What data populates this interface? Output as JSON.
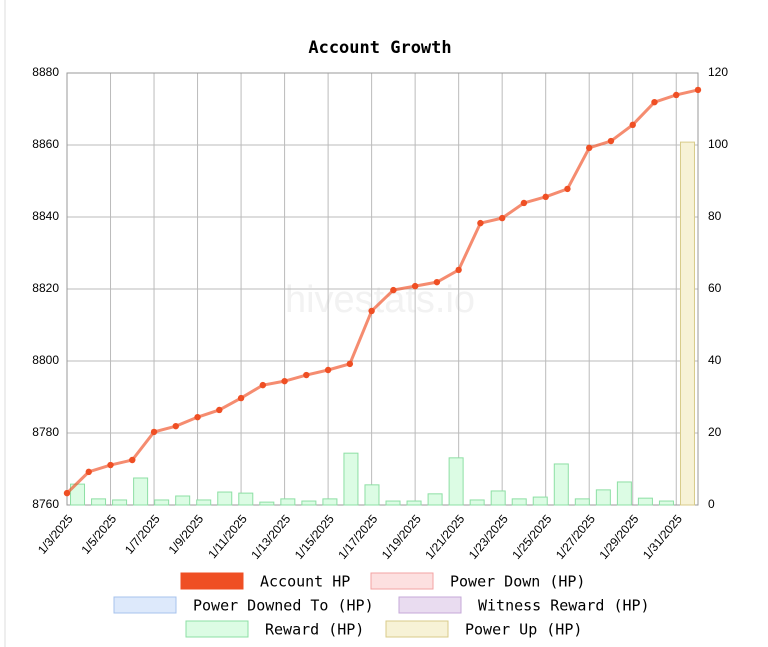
{
  "chart_data": {
    "type": "line",
    "title": "Account Growth",
    "watermark": "hivestats.io",
    "categories": [
      "1/3/2025",
      null,
      "1/5/2025",
      null,
      "1/7/2025",
      null,
      "1/9/2025",
      null,
      "1/11/2025",
      null,
      "1/13/2025",
      null,
      "1/15/2025",
      null,
      "1/17/2025",
      null,
      "1/19/2025",
      null,
      "1/21/2025",
      null,
      "1/23/2025",
      null,
      "1/25/2025",
      null,
      "1/27/2025",
      null,
      "1/29/2025",
      null,
      "1/31/2025",
      null
    ],
    "ylim": [
      8760,
      8880
    ],
    "yticks": [
      8760,
      8780,
      8800,
      8820,
      8840,
      8860,
      8880
    ],
    "y2lim": [
      0,
      120
    ],
    "y2ticks": [
      0,
      20,
      40,
      60,
      80,
      100,
      120
    ],
    "grid": true,
    "series": [
      {
        "name": "Account HP",
        "type": "line",
        "color": "#ef4f24",
        "values": [
          8763.3,
          8769.2,
          8771.1,
          8772.5,
          8780.3,
          8781.9,
          8784.4,
          8786.4,
          8789.7,
          8793.3,
          8794.4,
          8796.1,
          8797.5,
          8799.2,
          8813.9,
          8819.7,
          8820.8,
          8821.9,
          8825.3,
          8838.3,
          8839.7,
          8843.9,
          8845.6,
          8847.8,
          8859.2,
          8861.1,
          8865.6,
          8871.9,
          8873.9,
          8875.3
        ]
      },
      {
        "name": "Power Down (HP)",
        "type": "bar",
        "axis": "y2",
        "color": "#fde0e0",
        "values": [
          null,
          null,
          null,
          null,
          null,
          null,
          null,
          null,
          null,
          null,
          null,
          null,
          null,
          null,
          null,
          null,
          null,
          null,
          null,
          null,
          null,
          null,
          null,
          null,
          null,
          null,
          null,
          null,
          null,
          null
        ]
      },
      {
        "name": "Power Downed To (HP)",
        "type": "bar",
        "axis": "y2",
        "color": "#dde9fb",
        "values": [
          null,
          null,
          null,
          null,
          null,
          null,
          null,
          null,
          null,
          null,
          null,
          null,
          null,
          null,
          null,
          null,
          null,
          null,
          null,
          null,
          null,
          null,
          null,
          null,
          null,
          null,
          null,
          null,
          null,
          null
        ]
      },
      {
        "name": "Witness Reward (HP)",
        "type": "bar",
        "axis": "y2",
        "color": "#e9dcf0",
        "values": [
          null,
          null,
          null,
          null,
          null,
          null,
          null,
          null,
          null,
          null,
          null,
          null,
          null,
          null,
          null,
          null,
          null,
          null,
          null,
          null,
          null,
          null,
          null,
          null,
          null,
          null,
          null,
          null,
          null,
          null
        ]
      },
      {
        "name": "Reward (HP)",
        "type": "bar",
        "axis": "y2",
        "color": "#dcfce4",
        "values": [
          5.8,
          1.7,
          1.4,
          7.5,
          1.4,
          2.5,
          1.4,
          3.6,
          3.3,
          0.8,
          1.7,
          1.1,
          1.7,
          14.4,
          5.6,
          1.1,
          1.1,
          3.1,
          13.1,
          1.4,
          3.9,
          1.7,
          2.2,
          11.4,
          1.7,
          4.2,
          6.4,
          1.9,
          1.1,
          0.8
        ]
      },
      {
        "name": "Power Up (HP)",
        "type": "bar",
        "axis": "y2",
        "color": "#f7f2d6",
        "values": [
          null,
          null,
          null,
          null,
          null,
          null,
          null,
          null,
          null,
          null,
          null,
          null,
          null,
          null,
          null,
          null,
          null,
          null,
          null,
          null,
          null,
          null,
          null,
          null,
          null,
          null,
          null,
          null,
          null,
          100.8
        ]
      }
    ]
  }
}
